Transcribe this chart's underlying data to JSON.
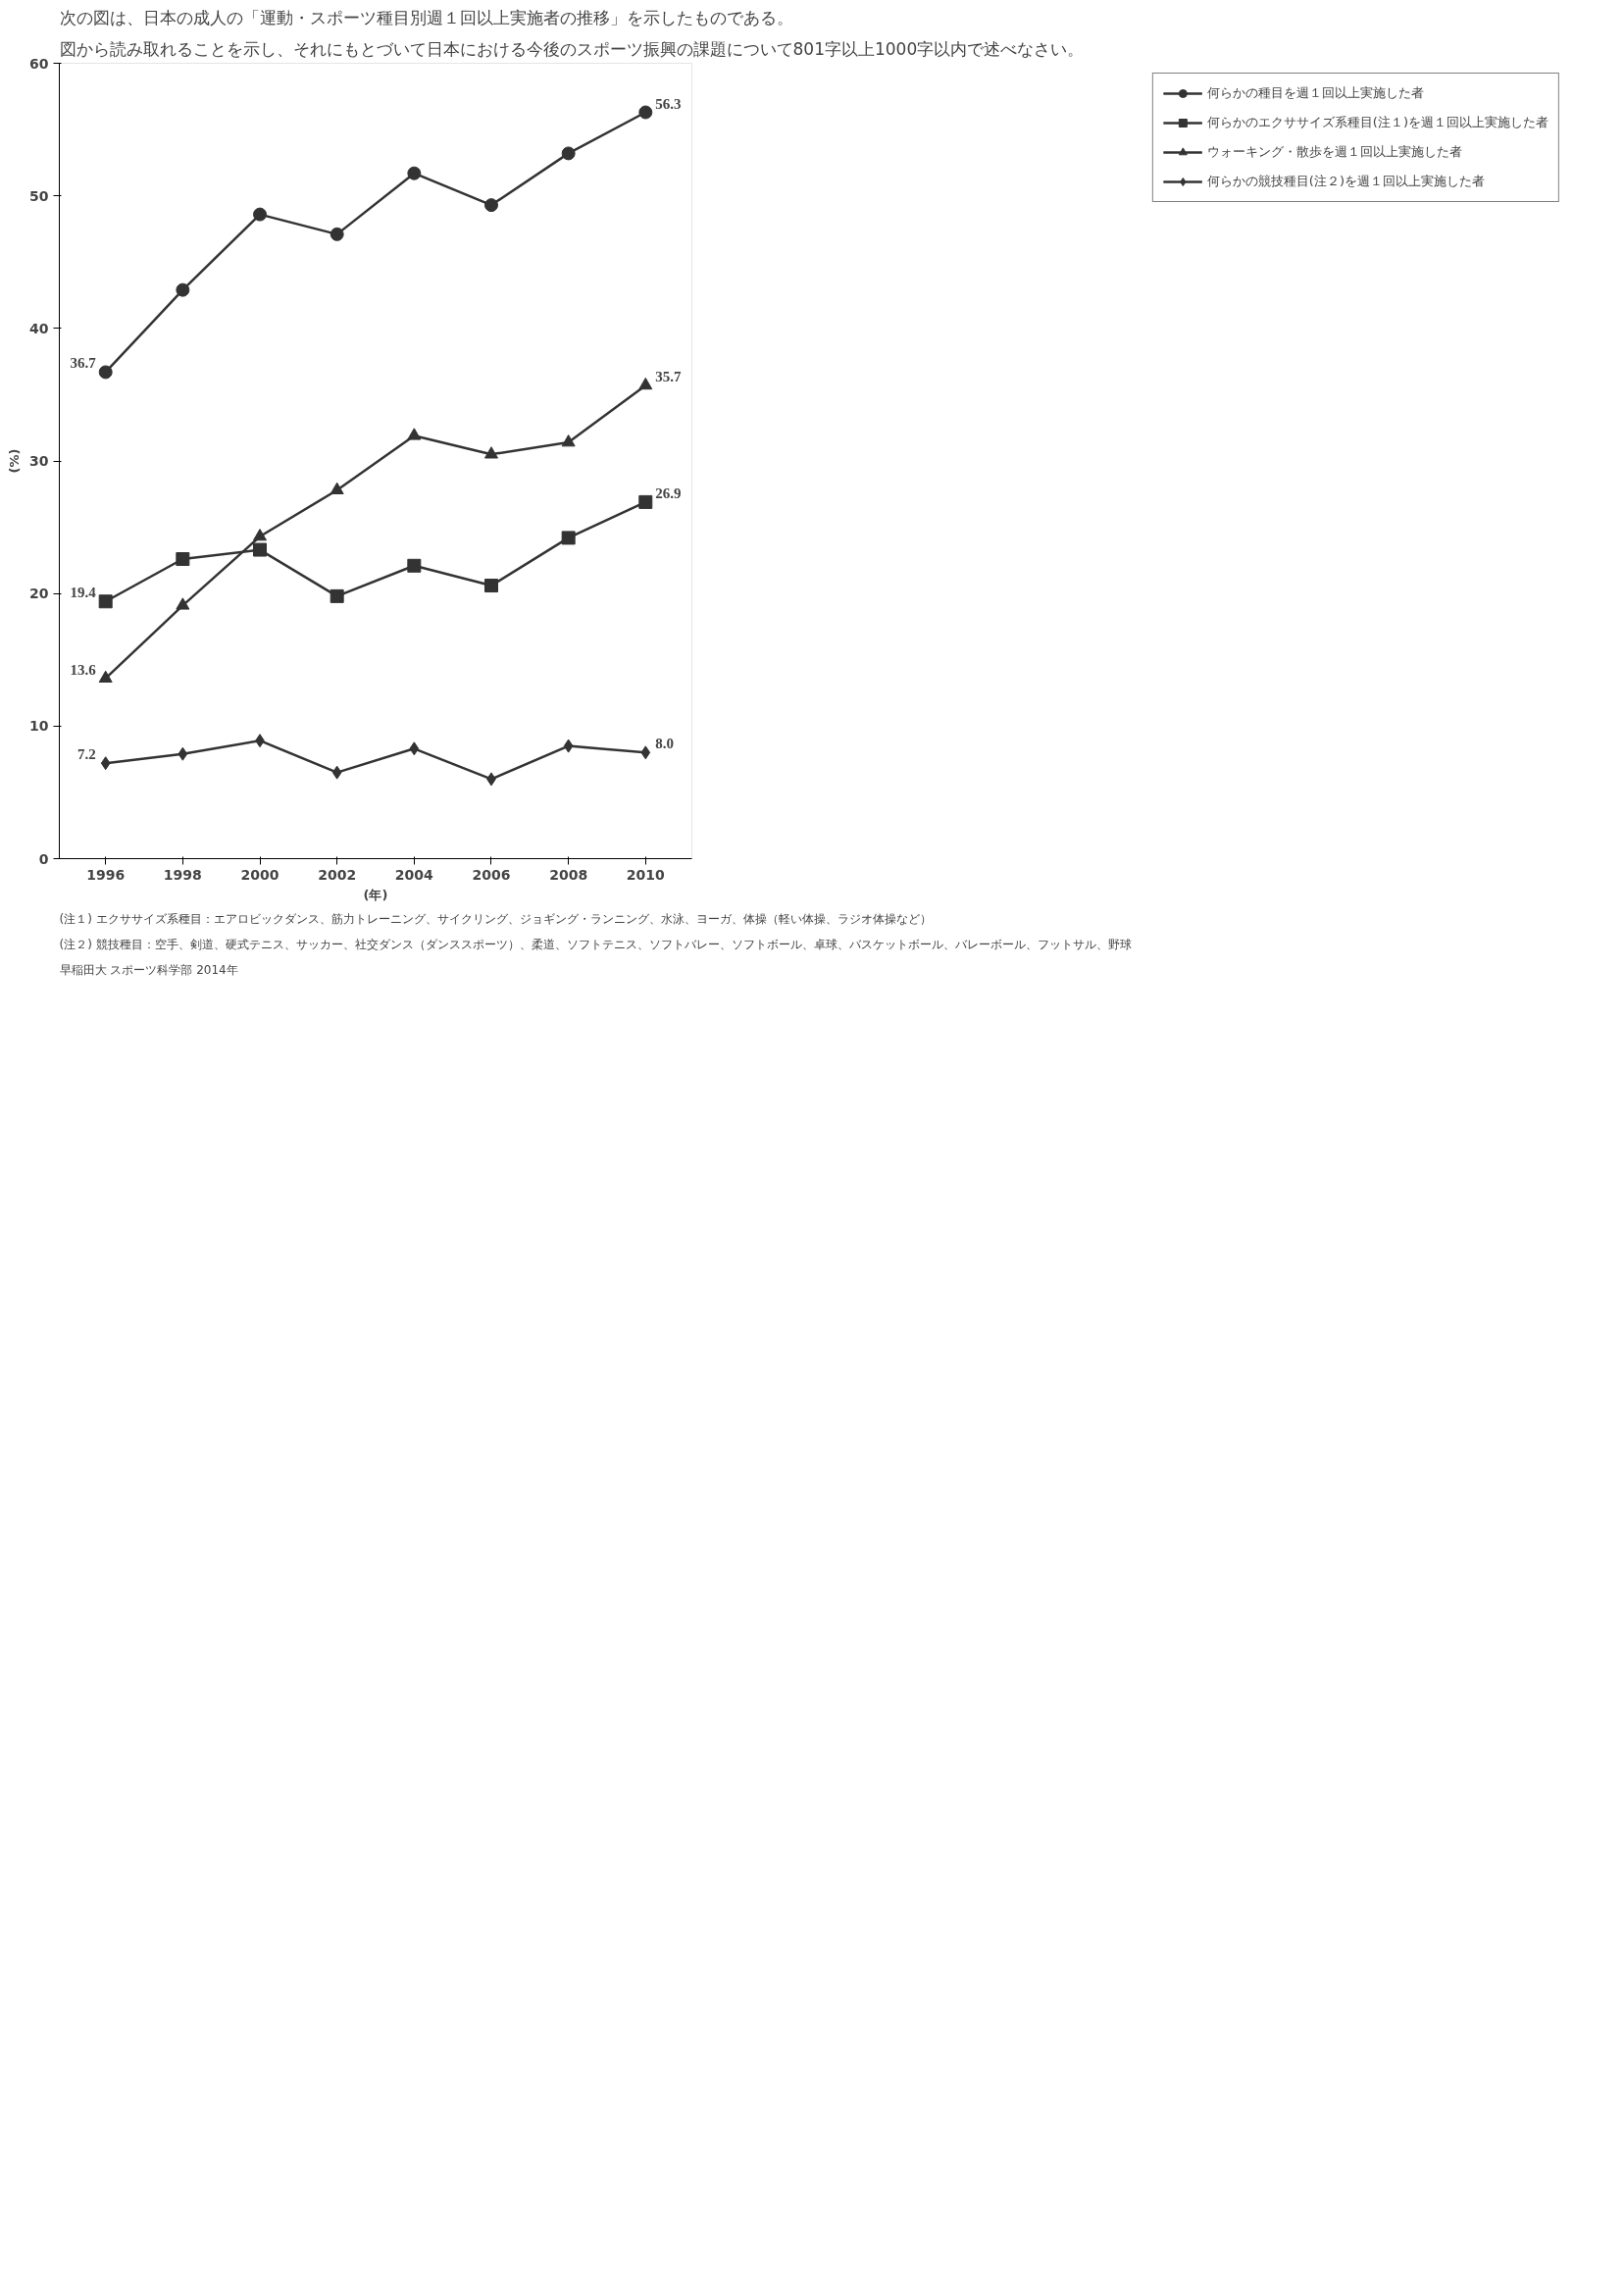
{
  "chart_data": {
    "type": "line",
    "title": "次の図は、日本の成人の「運動・スポーツ種目別週１回以上実施者の推移」を示したものである。",
    "subtitle": "図から読み取れることを示し、それにもとづいて日本における今後のスポーツ振興の課題について801字以上1000字以内で述べなさい。",
    "xlabel": "(年)",
    "ylabel": "(%)",
    "x": [
      1996,
      1998,
      2000,
      2002,
      2004,
      2006,
      2008,
      2010
    ],
    "series": [
      {
        "name": "何らかの種目を週１回以上実施した者",
        "color": "#333333",
        "marker": "circle",
        "values": [
          36.7,
          42.9,
          48.6,
          47.1,
          51.7,
          49.3,
          53.2,
          56.3
        ],
        "value_labels": [
          "36.7",
          null,
          null,
          null,
          null,
          null,
          null,
          "56.3"
        ]
      },
      {
        "name": "何らかのエクササイズ系種目(注１)を週１回以上実施した者",
        "color": "#333333",
        "marker": "square",
        "values": [
          19.4,
          22.6,
          23.3,
          19.8,
          22.1,
          20.6,
          24.2,
          26.9
        ],
        "value_labels": [
          "19.4",
          null,
          null,
          null,
          null,
          null,
          null,
          "26.9"
        ]
      },
      {
        "name": "ウォーキング・散歩を週１回以上実施した者",
        "color": "#333333",
        "marker": "triangle",
        "values": [
          13.6,
          19.1,
          24.3,
          27.8,
          31.9,
          30.5,
          31.4,
          35.7
        ],
        "value_labels": [
          "13.6",
          null,
          null,
          null,
          null,
          null,
          null,
          "35.7"
        ]
      },
      {
        "name": "何らかの競技種目(注２)を週１回以上実施した者",
        "color": "#333333",
        "marker": "diamond",
        "values": [
          7.2,
          7.9,
          8.9,
          6.5,
          8.3,
          6.0,
          8.5,
          8.0
        ],
        "value_labels": [
          "7.2",
          null,
          null,
          null,
          null,
          null,
          null,
          "8.0"
        ]
      }
    ],
    "xlim": [
      1994.8,
      2011.2
    ],
    "xticks": [
      1996,
      1998,
      2000,
      2002,
      2004,
      2006,
      2008,
      2010
    ],
    "ylim": [
      0,
      60
    ],
    "yticks": [
      0,
      10,
      20,
      30,
      40,
      50,
      60
    ],
    "grid": false,
    "legend": "right",
    "line_style": "solid",
    "annotations": [
      "(注１) エクササイズ系種目：エアロビックダンス、筋力トレーニング、サイクリング、ジョギング・ランニング、水泳、ヨーガ、体操（軽い体操、ラジオ体操など）",
      "(注２) 競技種目：空手、剣道、硬式テニス、サッカー、社交ダンス（ダンススポーツ）、柔道、ソフトテニス、ソフトバレー、ソフトボール、卓球、バスケットボール、バレーボール、フットサル、野球",
      "早稲田大 スポーツ科学部 2014年"
    ]
  }
}
